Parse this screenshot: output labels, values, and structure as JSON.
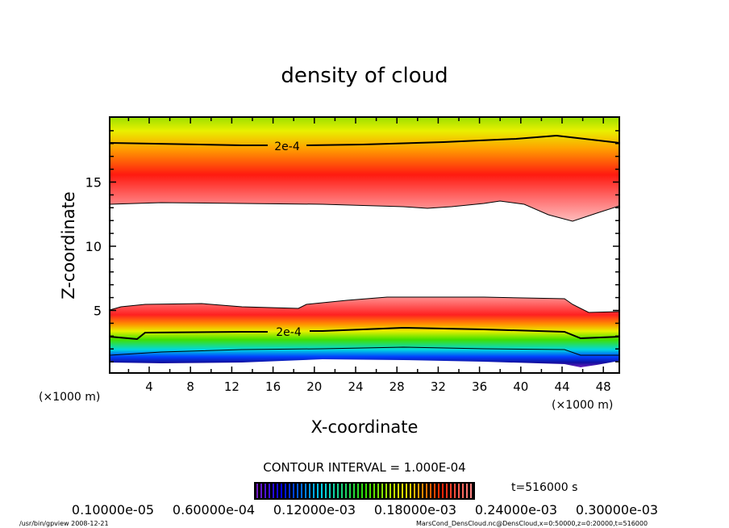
{
  "chart_data": {
    "type": "heatmap",
    "title": "density of cloud",
    "xlabel": "X-coordinate",
    "ylabel": "Z-coordinate",
    "x_unit": "(×1000 m)",
    "x_unit_right": "(×1000 m)",
    "xlim": [
      0,
      50
    ],
    "ylim": [
      0,
      20
    ],
    "xticks": [
      4,
      8,
      12,
      16,
      20,
      24,
      28,
      32,
      36,
      40,
      44,
      48
    ],
    "yticks": [
      5,
      10,
      15
    ],
    "contour_labels": [
      "2e-4",
      "2e-4"
    ],
    "contour_interval": "CONTOUR INTERVAL = 1.000E-04",
    "colorbar_labels": [
      "0.10000e-05",
      "0.60000e-04",
      "0.12000e-03",
      "0.18000e-03",
      "0.24000e-03",
      "0.30000e-03"
    ],
    "time_label": "t=516000 s"
  },
  "footer": {
    "left": "/usr/bin/gpview  2008-12-21",
    "right": "MarsCond_DensCloud.nc@DensCloud,x=0:50000,z=0:20000,t=516000"
  }
}
